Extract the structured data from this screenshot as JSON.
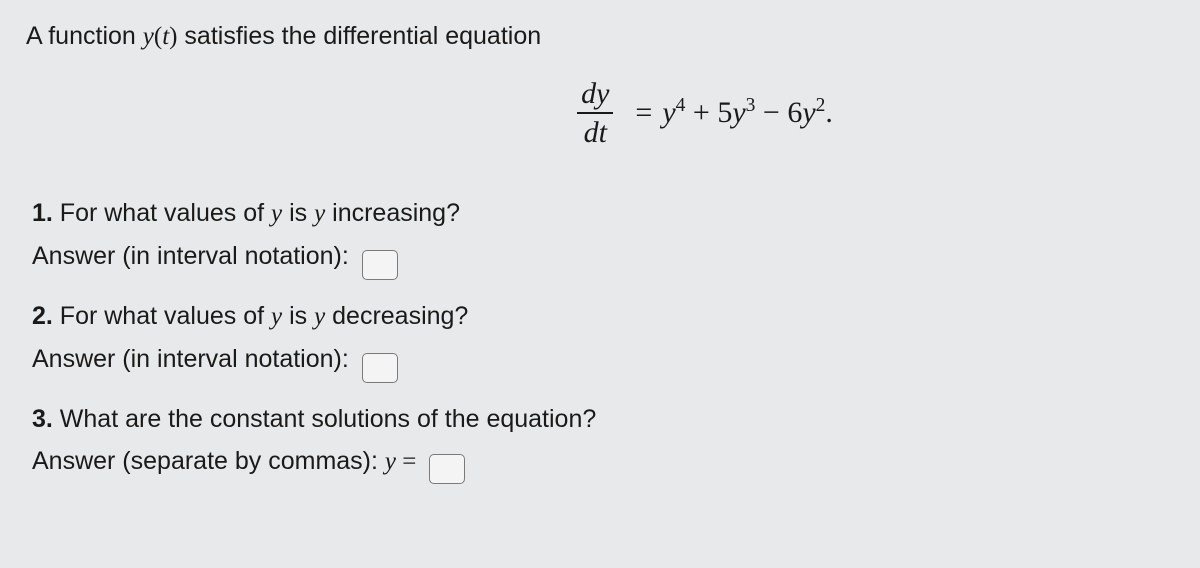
{
  "intro": {
    "prefix": "A function ",
    "func": "y",
    "arg_open": "(",
    "arg": "t",
    "arg_close": ")",
    "suffix": " satisfies the differential equation"
  },
  "equation": {
    "frac_top_d": "d",
    "frac_top_y": "y",
    "frac_bot_d": "d",
    "frac_bot_t": "t",
    "equals": "=",
    "t1_var": "y",
    "t1_pow": "4",
    "plus": " + 5",
    "t2_var": "y",
    "t2_pow": "3",
    "minus": " − 6",
    "t3_var": "y",
    "t3_pow": "2",
    "period": "."
  },
  "q1": {
    "num": "1.",
    "text_a": " For what values of ",
    "y1": "y",
    "text_b": " is ",
    "y2": "y",
    "text_c": " increasing?",
    "answer_label": "Answer (in interval notation):"
  },
  "q2": {
    "num": "2.",
    "text_a": " For what values of ",
    "y1": "y",
    "text_b": " is ",
    "y2": "y",
    "text_c": " decreasing?",
    "answer_label": "Answer (in interval notation):"
  },
  "q3": {
    "num": "3.",
    "text": " What are the constant solutions of the equation?",
    "answer_label": "Answer (separate by commas): ",
    "yeq": "y",
    "eq": " ="
  }
}
